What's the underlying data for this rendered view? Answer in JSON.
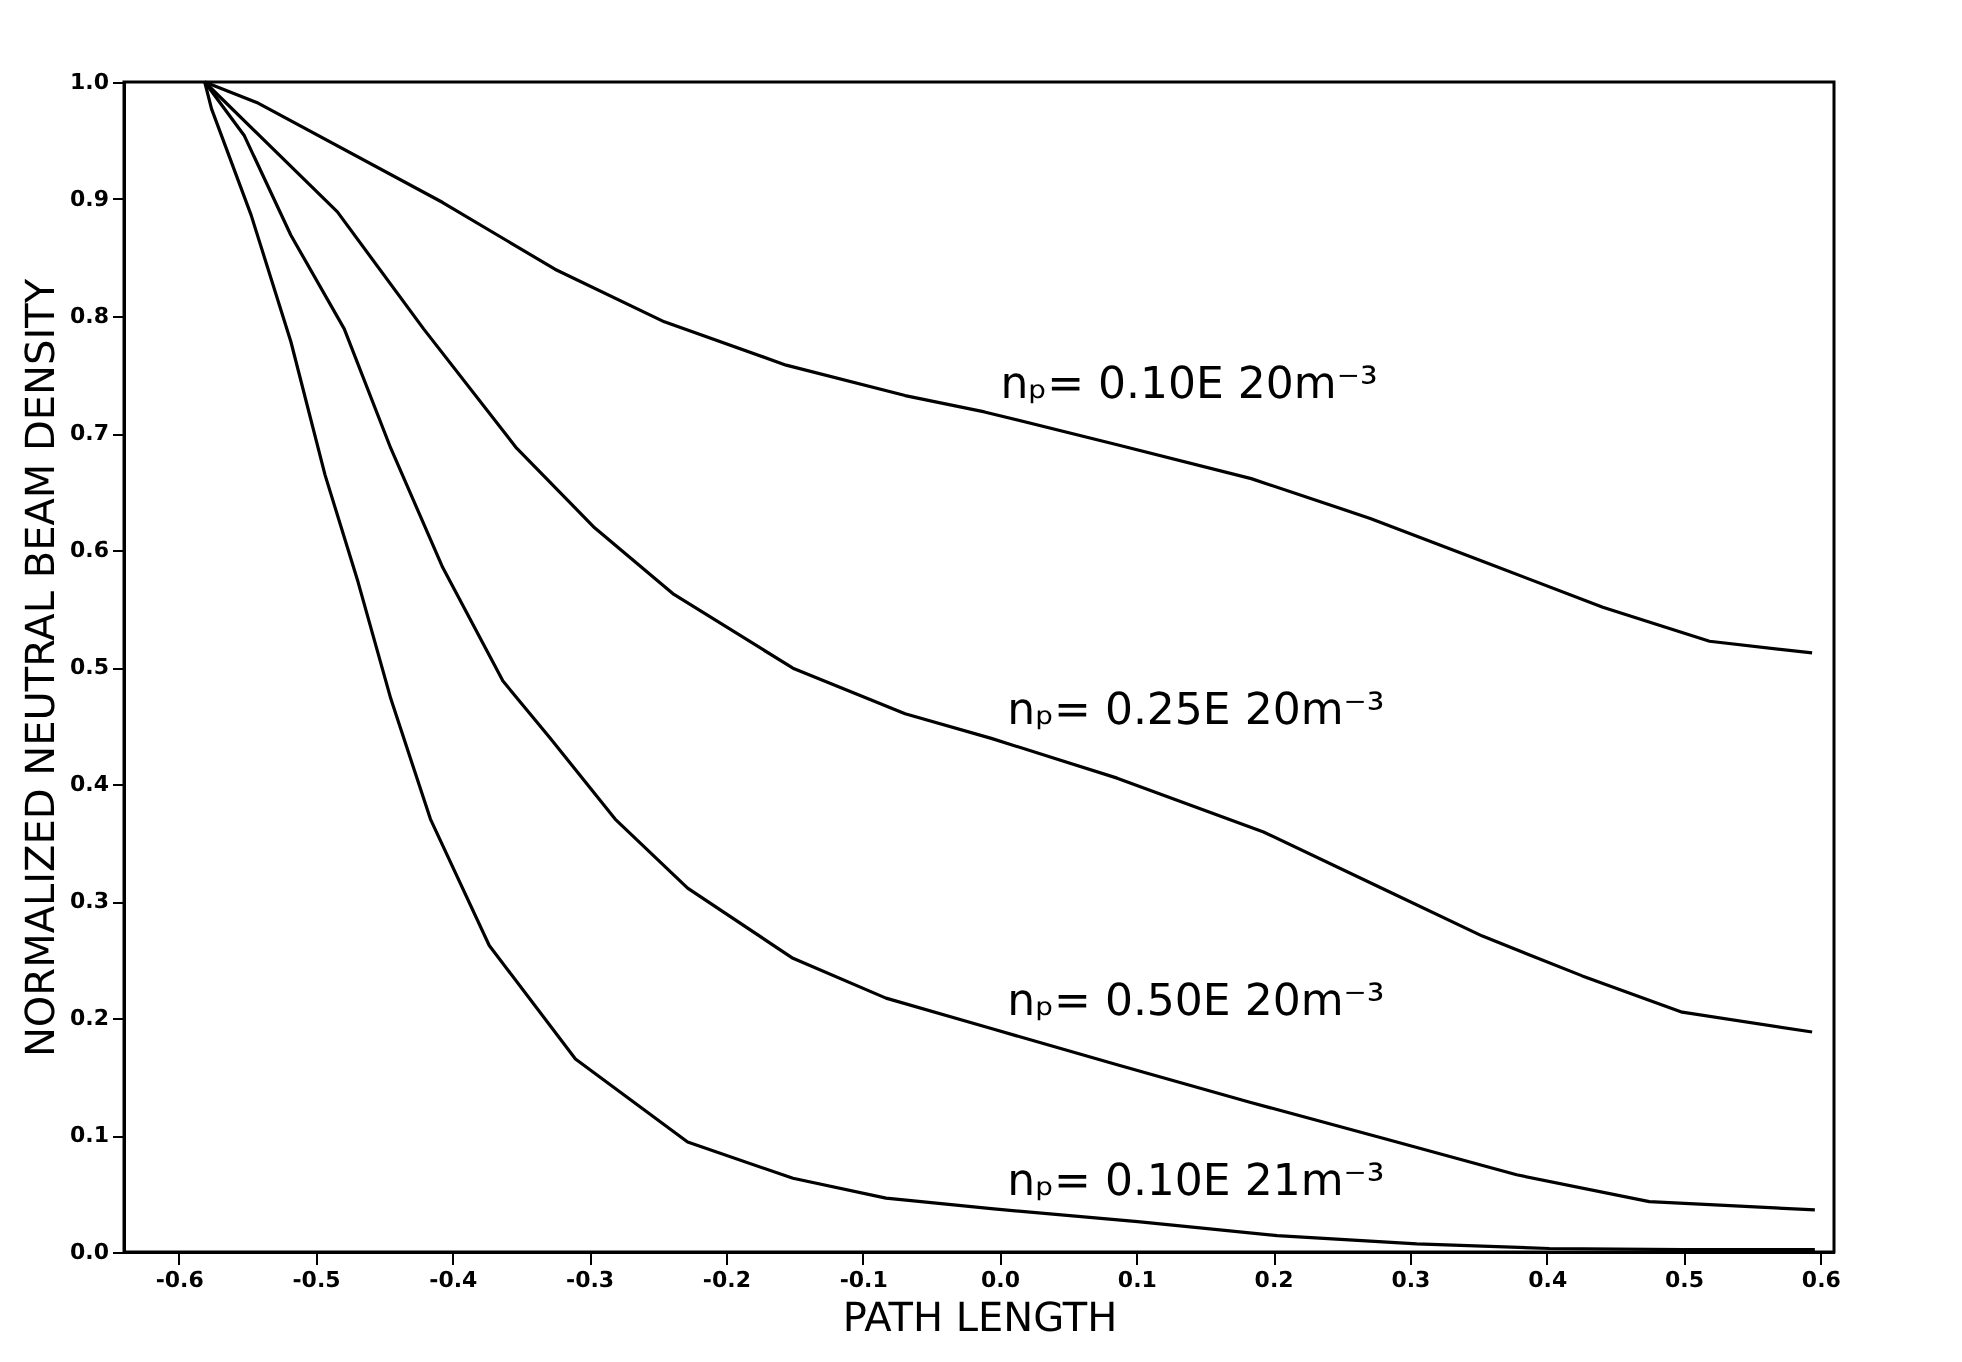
{
  "chart_data": {
    "type": "line",
    "xlabel": "PATH LENGTH",
    "ylabel": "NORMALIZED NEUTRAL BEAM DENSITY",
    "xlim": [
      -0.64,
      0.61
    ],
    "ylim": [
      0,
      1
    ],
    "xticks": [
      -0.6,
      -0.5,
      -0.4,
      -0.3,
      -0.2,
      -0.1,
      {
        "value": 0,
        "label": "0.0"
      },
      0.1,
      0.2,
      0.3,
      0.4,
      0.5,
      0.6
    ],
    "yticks": [
      {
        "value": 0,
        "label": "0.0"
      },
      0.1,
      0.2,
      0.3,
      0.4,
      0.5,
      0.6,
      0.7,
      0.8,
      0.9,
      {
        "value": 1,
        "label": "1.0"
      }
    ],
    "grid": false,
    "legend": false,
    "marker": "none",
    "line_style": "solid",
    "series": [
      {
        "name": "nₚ=  0.10E 20m⁻³",
        "color": "#000000",
        "x": [
          -0.581,
          -0.542,
          -0.407,
          -0.325,
          -0.245,
          -0.156,
          -0.069,
          -0.011,
          0.086,
          0.184,
          0.271,
          0.354,
          0.441,
          0.519,
          0.594
        ],
        "values": [
          1.0,
          0.982,
          0.897,
          0.84,
          0.795,
          0.758,
          0.732,
          0.718,
          0.69,
          0.661,
          0.627,
          0.59,
          0.551,
          0.522,
          0.512
        ]
      },
      {
        "name": "nₚ=  0.25E 20m⁻³",
        "color": "#000000",
        "x": [
          -0.581,
          -0.484,
          -0.421,
          -0.353,
          -0.296,
          -0.238,
          -0.151,
          -0.069,
          -0.006,
          0.086,
          0.193,
          0.281,
          0.353,
          0.426,
          0.499,
          0.594
        ],
        "values": [
          1.0,
          0.889,
          0.789,
          0.687,
          0.619,
          0.562,
          0.499,
          0.46,
          0.439,
          0.405,
          0.359,
          0.31,
          0.27,
          0.236,
          0.205,
          0.188
        ]
      },
      {
        "name": "nₚ=  0.50E 20m⁻³",
        "color": "#000000",
        "x": [
          -0.581,
          -0.552,
          -0.518,
          -0.479,
          -0.445,
          -0.407,
          -0.363,
          -0.329,
          -0.281,
          -0.228,
          -0.151,
          -0.083,
          -0.006,
          0.086,
          0.183,
          0.281,
          0.378,
          0.475,
          0.596
        ],
        "values": [
          1.0,
          0.954,
          0.869,
          0.789,
          0.687,
          0.585,
          0.488,
          0.44,
          0.37,
          0.311,
          0.251,
          0.217,
          0.191,
          0.16,
          0.128,
          0.097,
          0.066,
          0.043,
          0.036
        ]
      },
      {
        "name": "nₚ=  0.10E 21m⁻³",
        "color": "#000000",
        "x": [
          -0.581,
          -0.576,
          -0.547,
          -0.518,
          -0.493,
          -0.469,
          -0.445,
          -0.416,
          -0.373,
          -0.31,
          -0.228,
          -0.151,
          -0.083,
          -0.006,
          0.101,
          0.203,
          0.305,
          0.402,
          0.5,
          0.596
        ],
        "values": [
          1.0,
          0.977,
          0.886,
          0.778,
          0.664,
          0.573,
          0.473,
          0.37,
          0.262,
          0.165,
          0.094,
          0.063,
          0.046,
          0.037,
          0.026,
          0.014,
          0.007,
          0.003,
          0.002,
          0.002
        ]
      }
    ]
  }
}
